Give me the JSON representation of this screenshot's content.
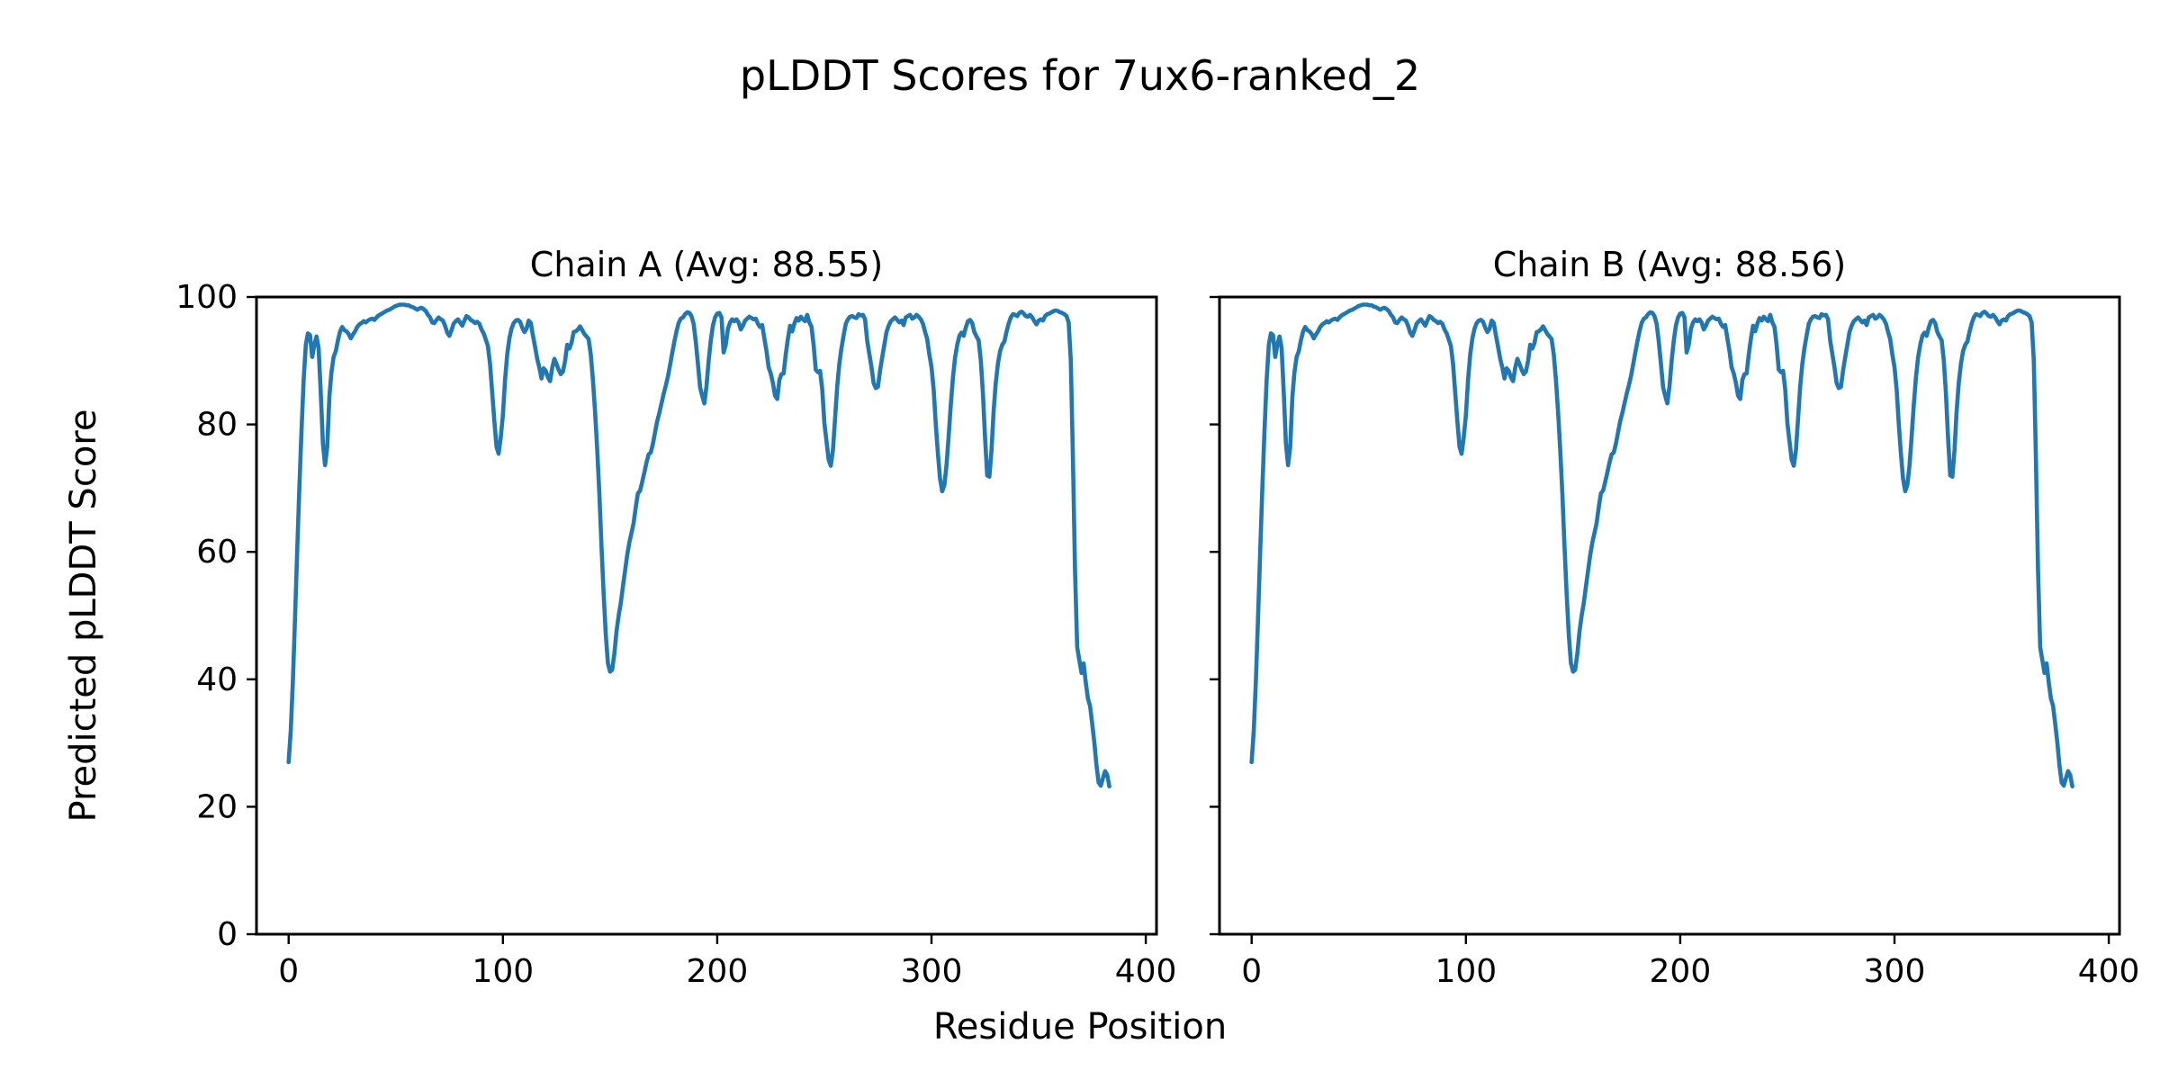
{
  "figure": {
    "background": "#ffffff",
    "text_color": "#000000",
    "spine_color": "#000000"
  },
  "chart_data": {
    "type": "line",
    "suptitle": "pLDDT Scores for 7ux6-ranked_2",
    "shared_xlabel": "Residue Position",
    "shared_ylabel": "Predicted pLDDT Score",
    "line_color": "#1f77b4",
    "grid": false,
    "legend": "none",
    "xlim": [
      -15,
      405
    ],
    "ylim": [
      0,
      100
    ],
    "xticks": [
      0,
      100,
      200,
      300,
      400
    ],
    "yticks": [
      0,
      20,
      40,
      60,
      80,
      100
    ],
    "x_start": 0,
    "x_step": 1,
    "subplots": [
      {
        "chain": "A",
        "title": "Chain A (Avg: 88.55)",
        "avg": 88.55,
        "show_ytick_labels": true,
        "scores_key": "scores"
      },
      {
        "chain": "B",
        "title": "Chain B (Avg: 88.56)",
        "avg": 88.56,
        "show_ytick_labels": false,
        "scores_key": "scores",
        "note": "curve visually identical to Chain A"
      }
    ],
    "scores": [
      27.0,
      32.0,
      40.0,
      50.0,
      60.0,
      70.0,
      79.0,
      87.0,
      92.5,
      94.3,
      94.0,
      90.6,
      92.5,
      93.8,
      92.0,
      85.0,
      77.0,
      73.6,
      76.5,
      84.4,
      88.2,
      90.6,
      91.5,
      93.2,
      94.6,
      95.3,
      94.8,
      94.6,
      94.2,
      93.5,
      94.1,
      94.6,
      95.3,
      95.7,
      95.9,
      96.2,
      96.0,
      96.3,
      96.5,
      96.6,
      96.4,
      96.8,
      97.1,
      97.3,
      97.5,
      97.7,
      97.9,
      98.0,
      98.2,
      98.4,
      98.6,
      98.7,
      98.8,
      98.8,
      98.8,
      98.7,
      98.7,
      98.5,
      98.4,
      98.2,
      98.0,
      98.2,
      98.3,
      98.1,
      97.8,
      97.2,
      96.8,
      96.0,
      95.9,
      96.4,
      96.8,
      96.5,
      96.3,
      95.5,
      94.4,
      93.9,
      94.8,
      95.8,
      96.2,
      96.5,
      96.0,
      95.5,
      96.3,
      97.0,
      96.8,
      96.4,
      96.2,
      95.9,
      96.1,
      95.8,
      94.9,
      94.3,
      93.3,
      92.3,
      89.5,
      85.0,
      80.5,
      76.5,
      75.4,
      78.0,
      81.5,
      87.0,
      91.0,
      93.5,
      95.0,
      95.9,
      96.3,
      96.4,
      96.1,
      95.2,
      94.5,
      95.0,
      96.3,
      95.9,
      94.0,
      92.2,
      90.3,
      88.9,
      87.2,
      88.8,
      88.4,
      87.4,
      86.8,
      88.9,
      90.3,
      89.5,
      88.6,
      87.9,
      88.3,
      90.0,
      92.5,
      91.9,
      92.8,
      94.5,
      94.6,
      94.9,
      95.4,
      94.8,
      94.2,
      93.8,
      93.4,
      91.0,
      87.0,
      82.0,
      76.0,
      69.0,
      61.0,
      53.5,
      47.0,
      42.5,
      41.2,
      41.5,
      44.0,
      47.5,
      50.0,
      52.0,
      54.5,
      57.0,
      59.5,
      61.5,
      63.0,
      64.5,
      67.0,
      69.2,
      69.6,
      71.0,
      72.5,
      74.0,
      75.3,
      75.6,
      77.0,
      78.8,
      80.5,
      81.8,
      83.3,
      84.8,
      86.1,
      87.5,
      89.3,
      91.2,
      93.0,
      94.6,
      95.9,
      96.6,
      96.8,
      97.3,
      97.6,
      97.5,
      97.0,
      95.8,
      93.0,
      89.5,
      85.8,
      84.5,
      83.3,
      86.0,
      90.0,
      93.2,
      95.5,
      96.8,
      97.4,
      97.5,
      96.8,
      91.3,
      92.5,
      95.0,
      96.0,
      96.5,
      96.2,
      96.5,
      96.0,
      94.9,
      95.5,
      96.3,
      96.6,
      96.9,
      96.7,
      96.5,
      96.6,
      95.8,
      95.3,
      95.6,
      93.5,
      91.5,
      89.0,
      88.0,
      86.5,
      84.5,
      84.0,
      87.0,
      87.9,
      88.0,
      91.0,
      93.5,
      95.5,
      94.6,
      95.8,
      96.7,
      96.3,
      96.9,
      96.5,
      96.2,
      97.2,
      96.0,
      95.3,
      92.5,
      88.6,
      88.2,
      88.4,
      85.5,
      80.2,
      77.4,
      74.5,
      73.5,
      76.0,
      81.0,
      85.9,
      89.5,
      92.0,
      94.0,
      95.8,
      96.5,
      96.9,
      97.0,
      96.8,
      96.7,
      97.3,
      97.1,
      97.2,
      96.5,
      93.1,
      91.0,
      89.0,
      86.5,
      85.7,
      85.9,
      88.5,
      90.5,
      92.5,
      94.5,
      95.5,
      96.2,
      96.5,
      96.8,
      96.4,
      96.0,
      96.3,
      95.6,
      96.8,
      97.0,
      97.2,
      96.6,
      96.8,
      97.2,
      96.9,
      96.5,
      95.8,
      94.5,
      93.4,
      91.0,
      89.0,
      85.5,
      80.0,
      75.5,
      71.5,
      69.5,
      70.5,
      73.6,
      78.0,
      83.0,
      87.3,
      90.5,
      92.5,
      93.9,
      94.4,
      93.9,
      95.2,
      96.2,
      96.4,
      95.9,
      94.5,
      93.8,
      93.2,
      90.0,
      85.0,
      78.0,
      72.0,
      71.8,
      76.0,
      82.0,
      86.5,
      89.5,
      91.5,
      92.5,
      93.0,
      94.5,
      95.8,
      96.8,
      97.3,
      97.2,
      97.0,
      97.5,
      97.7,
      97.4,
      97.0,
      96.9,
      97.2,
      96.8,
      96.2,
      95.7,
      96.3,
      96.5,
      96.3,
      97.0,
      97.3,
      97.4,
      97.6,
      97.8,
      97.9,
      97.8,
      97.6,
      97.5,
      97.3,
      97.0,
      96.0,
      90.0,
      75.0,
      57.0,
      45.0,
      43.0,
      41.0,
      42.5,
      39.5,
      37.0,
      35.8,
      33.0,
      30.0,
      26.5,
      23.8,
      23.3,
      24.5,
      25.6,
      25.0,
      23.2
    ]
  }
}
